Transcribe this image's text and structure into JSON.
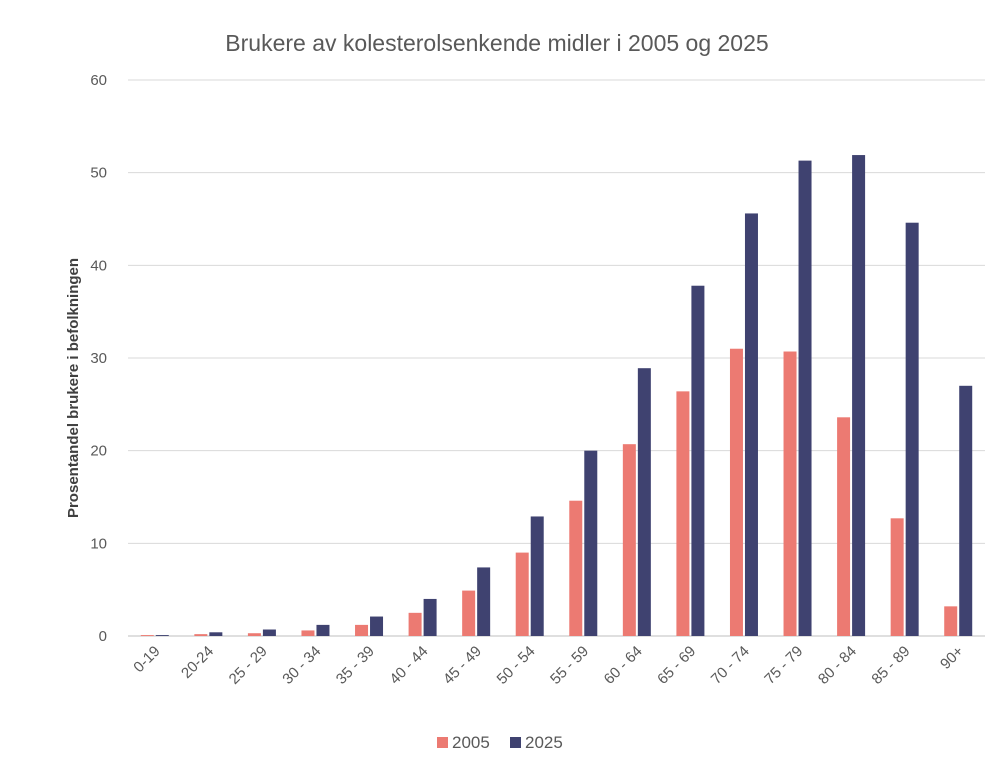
{
  "chart_data": {
    "type": "bar",
    "title": "Brukere av kolesterolsenkende midler i 2005 og 2025",
    "xlabel": "",
    "ylabel": "Prosentandel brukere i befolkningen",
    "ylim": [
      0,
      60
    ],
    "yticks": [
      "0",
      "10",
      "20",
      "30",
      "40",
      "50",
      "60"
    ],
    "grid": true,
    "legend_position": "bottom",
    "categories": [
      "0-19",
      "20-24",
      "25 - 29",
      "30 - 34",
      "35 - 39",
      "40 - 44",
      "45 - 49",
      "50 - 54",
      "55 - 59",
      "60 - 64",
      "65 - 69",
      "70 - 74",
      "75 - 79",
      "80 - 84",
      "85 - 89",
      "90+"
    ],
    "series": [
      {
        "name": "2005",
        "color": "#ec7a72",
        "values": [
          0.1,
          0.2,
          0.3,
          0.6,
          1.2,
          2.5,
          4.9,
          9.0,
          14.6,
          20.7,
          26.4,
          31.0,
          30.7,
          23.6,
          12.7,
          3.2
        ]
      },
      {
        "name": "2025",
        "color": "#3f4270",
        "values": [
          0.1,
          0.4,
          0.7,
          1.2,
          2.1,
          4.0,
          7.4,
          12.9,
          20.0,
          28.9,
          37.8,
          45.6,
          51.3,
          51.9,
          44.6,
          27.0
        ]
      }
    ]
  }
}
